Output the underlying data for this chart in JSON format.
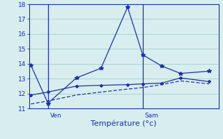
{
  "xlabel": "Température (°c)",
  "background_color": "#d8eeee",
  "grid_color": "#a8cccc",
  "line_color": "#1a2fb0",
  "ylim": [
    11,
    18
  ],
  "yticks": [
    11,
    12,
    13,
    14,
    15,
    16,
    17,
    18
  ],
  "xlim": [
    0,
    10
  ],
  "x_ven": 1.0,
  "x_sam": 6.0,
  "series1_x": [
    0.1,
    1.0,
    2.5,
    3.8,
    5.2,
    6.0,
    7.0,
    8.0,
    9.5
  ],
  "series1_y": [
    13.9,
    11.35,
    13.05,
    13.7,
    17.8,
    14.6,
    13.85,
    13.35,
    13.5
  ],
  "series2_x": [
    0.1,
    1.0,
    2.5,
    3.8,
    5.2,
    6.0,
    7.0,
    8.0,
    9.5
  ],
  "series2_y": [
    11.9,
    12.1,
    12.5,
    12.55,
    12.6,
    12.65,
    12.7,
    13.05,
    12.8
  ],
  "series3_x": [
    0.1,
    1.0,
    2.5,
    3.8,
    5.2,
    6.0,
    7.0,
    8.0,
    9.5
  ],
  "series3_y": [
    11.3,
    11.5,
    11.9,
    12.1,
    12.3,
    12.4,
    12.6,
    12.85,
    12.65
  ]
}
